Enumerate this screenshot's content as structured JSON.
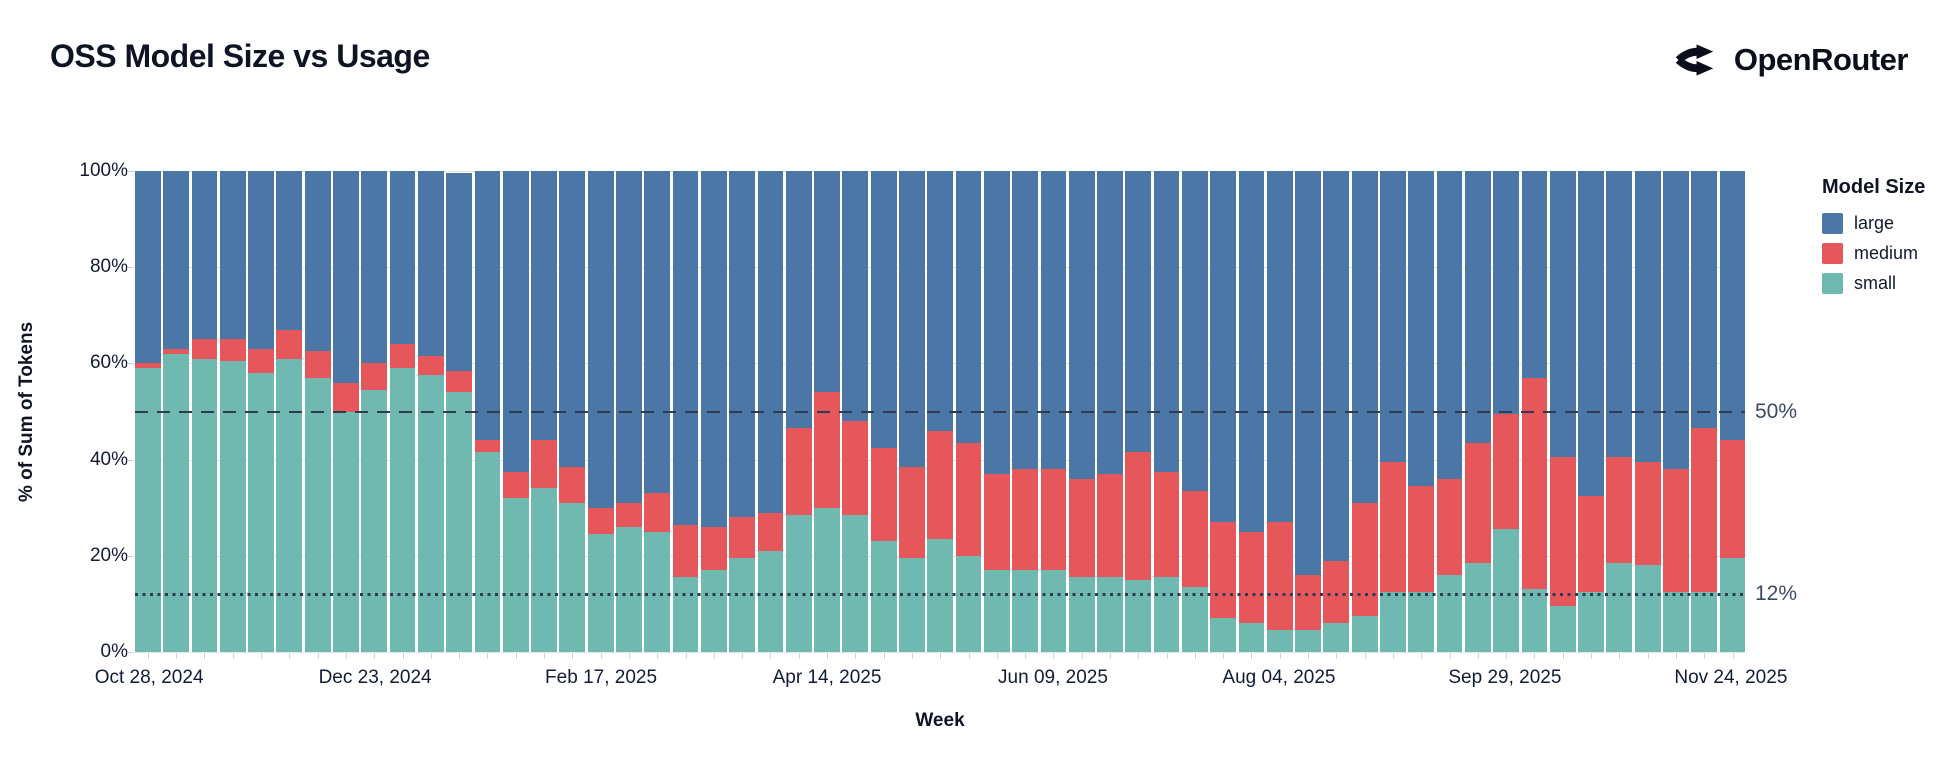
{
  "header": {
    "title": "OSS Model Size vs Usage",
    "brand": "OpenRouter"
  },
  "annotations": {
    "line_50": "50%",
    "line_12": "12%"
  },
  "chart_data": {
    "type": "bar",
    "stacked": true,
    "title": "OSS Model Size vs Usage",
    "xlabel": "Week",
    "ylabel": "% of Sum of Tokens",
    "ylim": [
      0,
      100
    ],
    "grid": "horizontal",
    "legend": {
      "title": "Model Size",
      "position": "right",
      "entries": [
        "large",
        "medium",
        "small"
      ]
    },
    "colors": {
      "large": "#4b77a7",
      "medium": "#e5575a",
      "small": "#70b9b0"
    },
    "stack_order_bottom_to_top": [
      "small",
      "medium",
      "large"
    ],
    "y_ticks": [
      {
        "value": 100,
        "label": "100%"
      },
      {
        "value": 80,
        "label": "80%"
      },
      {
        "value": 60,
        "label": "60%"
      },
      {
        "value": 40,
        "label": "40%"
      },
      {
        "value": 20,
        "label": "20%"
      },
      {
        "value": 0,
        "label": "0%"
      }
    ],
    "x_major_ticks": [
      {
        "index": 0,
        "label": "Oct 28, 2024"
      },
      {
        "index": 8,
        "label": "Dec 23, 2024"
      },
      {
        "index": 16,
        "label": "Feb 17, 2025"
      },
      {
        "index": 24,
        "label": "Apr 14, 2025"
      },
      {
        "index": 32,
        "label": "Jun 09, 2025"
      },
      {
        "index": 40,
        "label": "Aug 04, 2025"
      },
      {
        "index": 48,
        "label": "Sep 29, 2025"
      },
      {
        "index": 56,
        "label": "Nov 24, 2025"
      }
    ],
    "reference_lines": [
      {
        "value": 50,
        "label": "50%",
        "style": "dashed",
        "color": "#2f3b50"
      },
      {
        "value": 12,
        "label": "12%",
        "style": "dotted",
        "color": "#2f3b50"
      }
    ],
    "categories": [
      "Oct 28, 2024",
      "Nov 04, 2024",
      "Nov 11, 2024",
      "Nov 18, 2024",
      "Nov 25, 2024",
      "Dec 02, 2024",
      "Dec 09, 2024",
      "Dec 16, 2024",
      "Dec 23, 2024",
      "Dec 30, 2024",
      "Jan 06, 2025",
      "Jan 13, 2025",
      "Jan 20, 2025",
      "Jan 27, 2025",
      "Feb 03, 2025",
      "Feb 10, 2025",
      "Feb 17, 2025",
      "Feb 24, 2025",
      "Mar 03, 2025",
      "Mar 10, 2025",
      "Mar 17, 2025",
      "Mar 24, 2025",
      "Mar 31, 2025",
      "Apr 07, 2025",
      "Apr 14, 2025",
      "Apr 21, 2025",
      "Apr 28, 2025",
      "May 05, 2025",
      "May 12, 2025",
      "May 19, 2025",
      "May 26, 2025",
      "Jun 02, 2025",
      "Jun 09, 2025",
      "Jun 16, 2025",
      "Jun 23, 2025",
      "Jun 30, 2025",
      "Jul 07, 2025",
      "Jul 14, 2025",
      "Jul 21, 2025",
      "Jul 28, 2025",
      "Aug 04, 2025",
      "Aug 11, 2025",
      "Aug 18, 2025",
      "Aug 25, 2025",
      "Sep 01, 2025",
      "Sep 08, 2025",
      "Sep 15, 2025",
      "Sep 22, 2025",
      "Sep 29, 2025",
      "Oct 06, 2025",
      "Oct 13, 2025",
      "Oct 20, 2025",
      "Oct 27, 2025",
      "Nov 03, 2025",
      "Nov 10, 2025",
      "Nov 17, 2025",
      "Nov 24, 2025"
    ],
    "series": [
      {
        "name": "large",
        "color": "#4b77a7",
        "values": [
          40,
          37,
          35,
          35,
          37,
          33,
          37.5,
          44,
          40,
          36,
          38.5,
          41,
          56,
          62.5,
          56,
          61.5,
          70,
          69,
          67,
          73.5,
          74,
          72,
          71,
          53.5,
          46,
          52,
          57.5,
          61.5,
          54,
          56.5,
          63,
          62,
          62,
          64,
          63,
          58.5,
          62.5,
          66.5,
          73,
          75,
          73,
          84,
          81,
          69,
          60.5,
          65.5,
          64,
          56.5,
          50.5,
          43,
          59.5,
          67.5,
          59.5,
          60.5,
          62,
          53.5,
          56
        ]
      },
      {
        "name": "medium",
        "color": "#e5575a",
        "values": [
          1,
          1,
          4,
          4.5,
          5,
          6,
          5.5,
          6,
          5.5,
          5,
          4,
          4.5,
          2.5,
          5.5,
          10,
          7.5,
          5.5,
          5,
          8,
          11,
          9,
          8.5,
          8,
          18,
          24,
          19.5,
          19.5,
          19,
          22.5,
          23.5,
          20,
          21,
          21,
          20.5,
          21.5,
          26.5,
          22,
          20,
          20,
          19,
          22.5,
          11.5,
          13,
          23.5,
          27,
          22,
          20,
          25,
          24,
          44,
          31,
          20,
          22,
          21.5,
          25.5,
          34,
          24.5
        ]
      },
      {
        "name": "small",
        "color": "#70b9b0",
        "values": [
          59,
          62,
          61,
          60.5,
          58,
          61,
          57,
          50,
          54.5,
          59,
          57.5,
          54,
          41.5,
          32,
          34,
          31,
          24.5,
          26,
          25,
          15.5,
          17,
          19.5,
          21,
          28.5,
          30,
          28.5,
          23,
          19.5,
          23.5,
          20,
          17,
          17,
          17,
          15.5,
          15.5,
          15,
          15.5,
          13.5,
          7,
          6,
          4.5,
          4.5,
          6,
          7.5,
          12.5,
          12.5,
          16,
          18.5,
          25.5,
          13,
          9.5,
          12.5,
          18.5,
          18,
          12.5,
          12.5,
          19.5
        ]
      }
    ]
  }
}
